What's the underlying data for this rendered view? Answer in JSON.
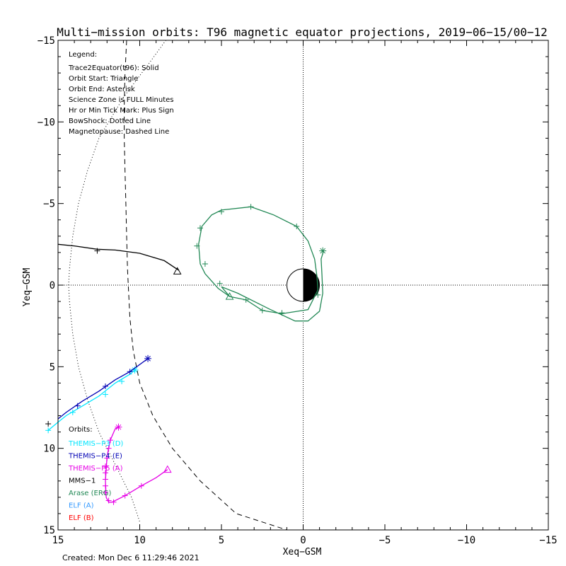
{
  "colors": {
    "themis_p3": "#00e6ff",
    "themis_p4": "#0000b4",
    "themis_p5": "#e600e6",
    "mms1": "#000000",
    "arase": "#228855",
    "elf_a": "#3399ff",
    "elf_b": "#ff0000",
    "axes": "#000000"
  },
  "chart_data": {
    "type": "line",
    "title": "Multi−mission orbits: T96 magnetic equator projections, 2019−06−15/00−12",
    "xlabel": "Xeq−GSM",
    "ylabel": "Yeq−GSM",
    "xlim": [
      15,
      -15
    ],
    "ylim": [
      -15,
      15
    ],
    "xticks": [
      15,
      10,
      5,
      0,
      -5,
      -10,
      -15
    ],
    "xtick_labels": [
      "15",
      "10",
      "5",
      "0",
      "−5",
      "−10",
      "−15"
    ],
    "yticks": [
      -15,
      -10,
      -5,
      0,
      5,
      10,
      15
    ],
    "ytick_labels": [
      "−15",
      "−10",
      "−5",
      "0",
      "5",
      "10",
      "15"
    ],
    "legend_lines": [
      "Legend:",
      "Trace2Equator(t96): Solid",
      "Orbit Start: Triangle",
      "Orbit End: Asterisk",
      "Science Zone is FULL Minutes",
      "Hr or Min Tick Mark: Plus Sign",
      "BowShock: Dotted Line",
      "Magnetopause: Dashed Line"
    ],
    "orbits_title": "Orbits:",
    "orbit_legend": [
      {
        "label": "THEMIS−P3 (D)",
        "color": "#00e6ff"
      },
      {
        "label": "THEMIS−P4 (E)",
        "color": "#0000b4"
      },
      {
        "label": "THEMIS−P5 (A)",
        "color": "#e600e6"
      },
      {
        "label": "MMS−1",
        "color": "#000000"
      },
      {
        "label": "Arase (ERG)",
        "color": "#228855"
      },
      {
        "label": "ELF (A)",
        "color": "#3399ff"
      },
      {
        "label": "ELF (B)",
        "color": "#ff0000"
      }
    ],
    "magnetopause": [
      [
        10.8,
        -15
      ],
      [
        10.9,
        -13
      ],
      [
        10.95,
        -11
      ],
      [
        10.95,
        -9
      ],
      [
        10.9,
        -7
      ],
      [
        10.85,
        -5
      ],
      [
        10.8,
        -3
      ],
      [
        10.75,
        -1
      ],
      [
        10.7,
        0
      ],
      [
        10.6,
        2
      ],
      [
        10.4,
        4
      ],
      [
        10.0,
        6
      ],
      [
        9.2,
        8
      ],
      [
        8.0,
        10
      ],
      [
        6.3,
        12
      ],
      [
        4.1,
        14
      ],
      [
        1.0,
        15
      ]
    ],
    "bow_shock": [
      [
        8.4,
        -15
      ],
      [
        9.5,
        -13.5
      ],
      [
        11.0,
        -11.5
      ],
      [
        12.5,
        -9
      ],
      [
        13.2,
        -7
      ],
      [
        13.75,
        -5
      ],
      [
        14.1,
        -3
      ],
      [
        14.3,
        -1
      ],
      [
        14.35,
        0
      ],
      [
        14.3,
        1
      ],
      [
        14.1,
        3
      ],
      [
        13.75,
        5
      ],
      [
        13.2,
        7
      ],
      [
        12.5,
        9
      ],
      [
        11.5,
        11
      ],
      [
        10.5,
        13
      ],
      [
        10.0,
        14.5
      ]
    ],
    "series": [
      {
        "name": "THEMIS−P3 (D)",
        "color": "#00e6ff",
        "points": [
          [
            10.5,
            5.4
          ],
          [
            11.5,
            6.0
          ],
          [
            12.5,
            6.8
          ],
          [
            13.5,
            7.4
          ],
          [
            14.5,
            8.0
          ],
          [
            15.0,
            8.4
          ],
          [
            15.6,
            8.9
          ]
        ],
        "ticks": [
          [
            10.5,
            5.3
          ],
          [
            11.1,
            5.9
          ],
          [
            12.1,
            6.7
          ],
          [
            14.1,
            7.8
          ],
          [
            15.6,
            8.9
          ]
        ],
        "end": [
          10.3,
          5.2
        ]
      },
      {
        "name": "THEMIS−P4 (E)",
        "color": "#0000b4",
        "points": [
          [
            9.5,
            4.5
          ],
          [
            10.6,
            5.3
          ],
          [
            11.5,
            5.8
          ],
          [
            12.5,
            6.5
          ],
          [
            13.5,
            7.1
          ],
          [
            14.5,
            7.8
          ],
          [
            15.0,
            8.2
          ]
        ],
        "ticks": [
          [
            10.6,
            5.3
          ],
          [
            12.1,
            6.2
          ],
          [
            13.8,
            7.4
          ]
        ],
        "end": [
          9.5,
          4.5
        ]
      },
      {
        "name": "THEMIS−P5 (A)",
        "color": "#e600e6",
        "points": [
          [
            8.3,
            11.3
          ],
          [
            9.0,
            11.8
          ],
          [
            9.9,
            12.3
          ],
          [
            10.9,
            12.9
          ],
          [
            11.7,
            13.3
          ],
          [
            11.9,
            13.3
          ],
          [
            12.05,
            13.0
          ],
          [
            12.1,
            12.0
          ],
          [
            12.0,
            10.5
          ],
          [
            11.8,
            9.5
          ],
          [
            11.5,
            8.8
          ],
          [
            11.3,
            8.7
          ]
        ],
        "ticks": [
          [
            9.9,
            12.3
          ],
          [
            10.9,
            12.9
          ],
          [
            11.6,
            13.3
          ],
          [
            11.9,
            13.2
          ],
          [
            12.1,
            12.7
          ],
          [
            12.1,
            12.3
          ],
          [
            12.1,
            11.9
          ],
          [
            12.1,
            11.5
          ],
          [
            12.1,
            11.1
          ],
          [
            12.0,
            10.6
          ],
          [
            11.9,
            10.0
          ],
          [
            11.8,
            9.5
          ]
        ],
        "start": [
          8.3,
          11.3
        ],
        "end": [
          11.3,
          8.7
        ]
      },
      {
        "name": "MMS−1",
        "color": "#000000",
        "points": [
          [
            7.6,
            -0.9
          ],
          [
            8.5,
            -1.5
          ],
          [
            10.0,
            -1.95
          ],
          [
            11.5,
            -2.15
          ],
          [
            12.6,
            -2.2
          ],
          [
            14.0,
            -2.4
          ],
          [
            15.0,
            -2.5
          ]
        ],
        "ticks": [
          [
            12.6,
            -2.1
          ],
          [
            15.6,
            8.5
          ]
        ],
        "start": [
          7.7,
          -0.85
        ]
      },
      {
        "name": "Arase (ERG)",
        "color": "#228855",
        "points": [
          [
            4.5,
            0.7
          ],
          [
            5.2,
            0.2
          ],
          [
            6.0,
            -0.7
          ],
          [
            6.3,
            -1.3
          ],
          [
            6.4,
            -2.5
          ],
          [
            6.2,
            -3.6
          ],
          [
            5.6,
            -4.3
          ],
          [
            5.0,
            -4.6
          ],
          [
            3.2,
            -4.8
          ],
          [
            1.8,
            -4.3
          ],
          [
            0.4,
            -3.6
          ],
          [
            -0.3,
            -2.7
          ],
          [
            -0.7,
            -1.6
          ],
          [
            -0.85,
            -0.5
          ],
          [
            -0.9,
            0.3
          ],
          [
            -0.3,
            1.5
          ],
          [
            1.3,
            1.75
          ],
          [
            2.5,
            1.55
          ],
          [
            3.5,
            0.9
          ],
          [
            4.5,
            0.7
          ],
          [
            5.0,
            0.1
          ],
          [
            4.0,
            0.5
          ],
          [
            2.0,
            1.5
          ],
          [
            0.5,
            2.2
          ],
          [
            -0.3,
            2.2
          ],
          [
            -1.0,
            1.6
          ],
          [
            -1.2,
            0.5
          ],
          [
            -1.15,
            -0.6
          ],
          [
            -1.1,
            -1.6
          ],
          [
            -1.25,
            -2.1
          ]
        ],
        "ticks": [
          [
            5.0,
            -4.5
          ],
          [
            3.2,
            -4.8
          ],
          [
            0.4,
            -3.6
          ],
          [
            6.3,
            -3.5
          ],
          [
            6.5,
            -2.4
          ],
          [
            6.0,
            -1.3
          ],
          [
            5.1,
            -0.1
          ],
          [
            3.5,
            0.9
          ],
          [
            2.5,
            1.55
          ],
          [
            1.3,
            1.7
          ],
          [
            -0.9,
            0.6
          ]
        ],
        "start": [
          4.5,
          0.7
        ],
        "end": [
          -1.2,
          -2.1
        ]
      }
    ]
  },
  "footer": {
    "created": "Created: Mon Dec  6 11:29:46 2021"
  }
}
